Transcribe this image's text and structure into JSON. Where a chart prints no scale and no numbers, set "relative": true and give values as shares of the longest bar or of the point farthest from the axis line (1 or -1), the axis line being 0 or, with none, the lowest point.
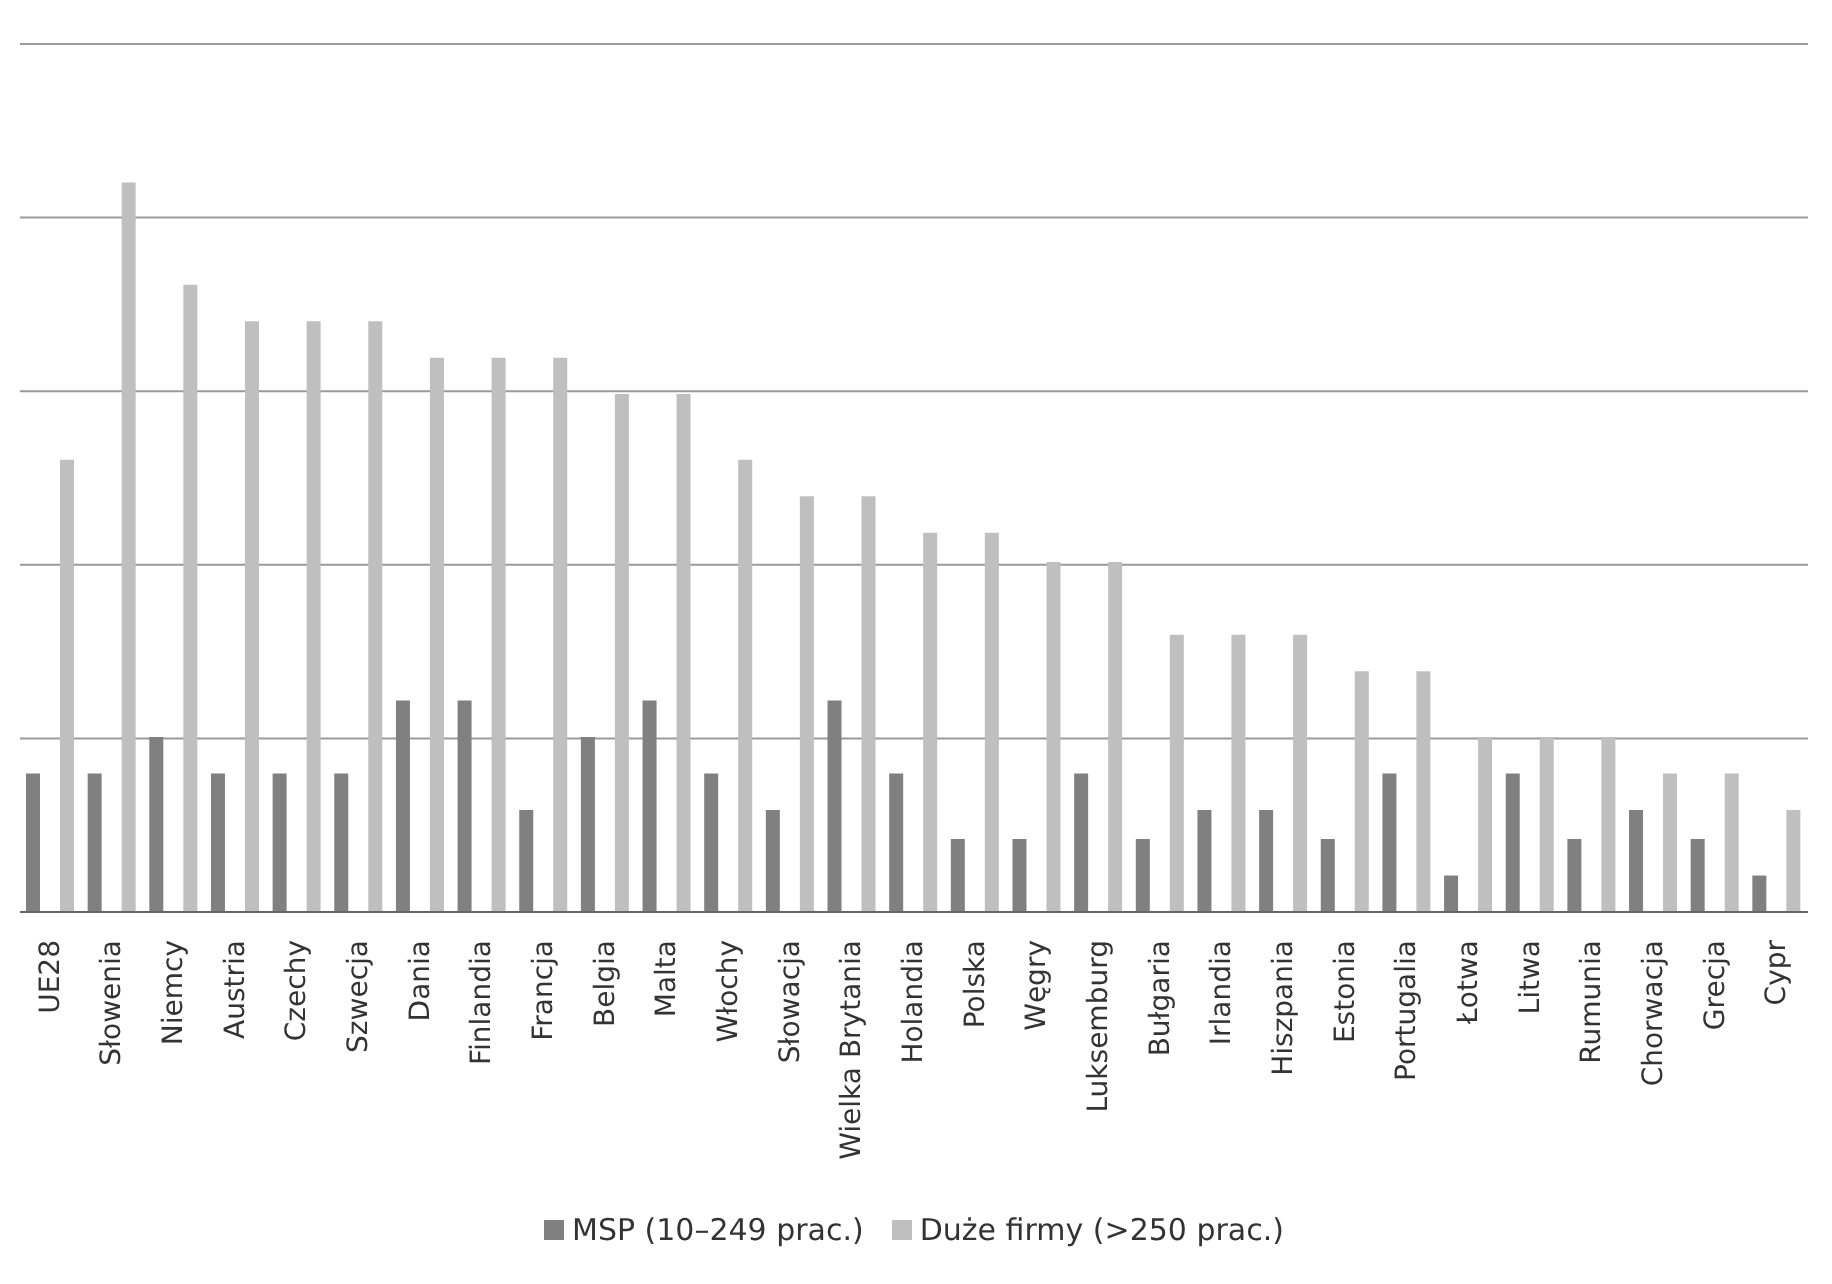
{
  "chart_data": {
    "type": "bar",
    "relative": true,
    "grid": "y",
    "legend": "bottom",
    "categories": [
      "UE28",
      "Słowenia",
      "Niemcy",
      "Austria",
      "Czechy",
      "Szwecja",
      "Dania",
      "Finlandia",
      "Francja",
      "Belgia",
      "Malta",
      "Włochy",
      "Słowacja",
      "Wielka Brytania",
      "Holandia",
      "Polska",
      "Węgry",
      "Luksemburg",
      "Bułgaria",
      "Irlandia",
      "Hiszpania",
      "Estonia",
      "Portugalia",
      "Łotwa",
      "Litwa",
      "Rumunia",
      "Chorwacja",
      "Grecja",
      "Cypr"
    ],
    "series": [
      {
        "name": "MSP (10–249 prac.)",
        "color": "#808080",
        "values": [
          0.19,
          0.19,
          0.24,
          0.19,
          0.19,
          0.19,
          0.29,
          0.29,
          0.14,
          0.24,
          0.29,
          0.19,
          0.14,
          0.29,
          0.19,
          0.1,
          0.1,
          0.19,
          0.1,
          0.14,
          0.14,
          0.1,
          0.19,
          0.05,
          0.19,
          0.1,
          0.14,
          0.1,
          0.05
        ]
      },
      {
        "name": "Duże firmy (>250 prac.)",
        "color": "#bfbfbf",
        "values": [
          0.62,
          1,
          0.86,
          0.81,
          0.81,
          0.81,
          0.76,
          0.76,
          0.76,
          0.71,
          0.71,
          0.62,
          0.57,
          0.57,
          0.52,
          0.52,
          0.48,
          0.48,
          0.38,
          0.38,
          0.38,
          0.33,
          0.33,
          0.24,
          0.24,
          0.24,
          0.19,
          0.19,
          0.14
        ]
      }
    ]
  }
}
